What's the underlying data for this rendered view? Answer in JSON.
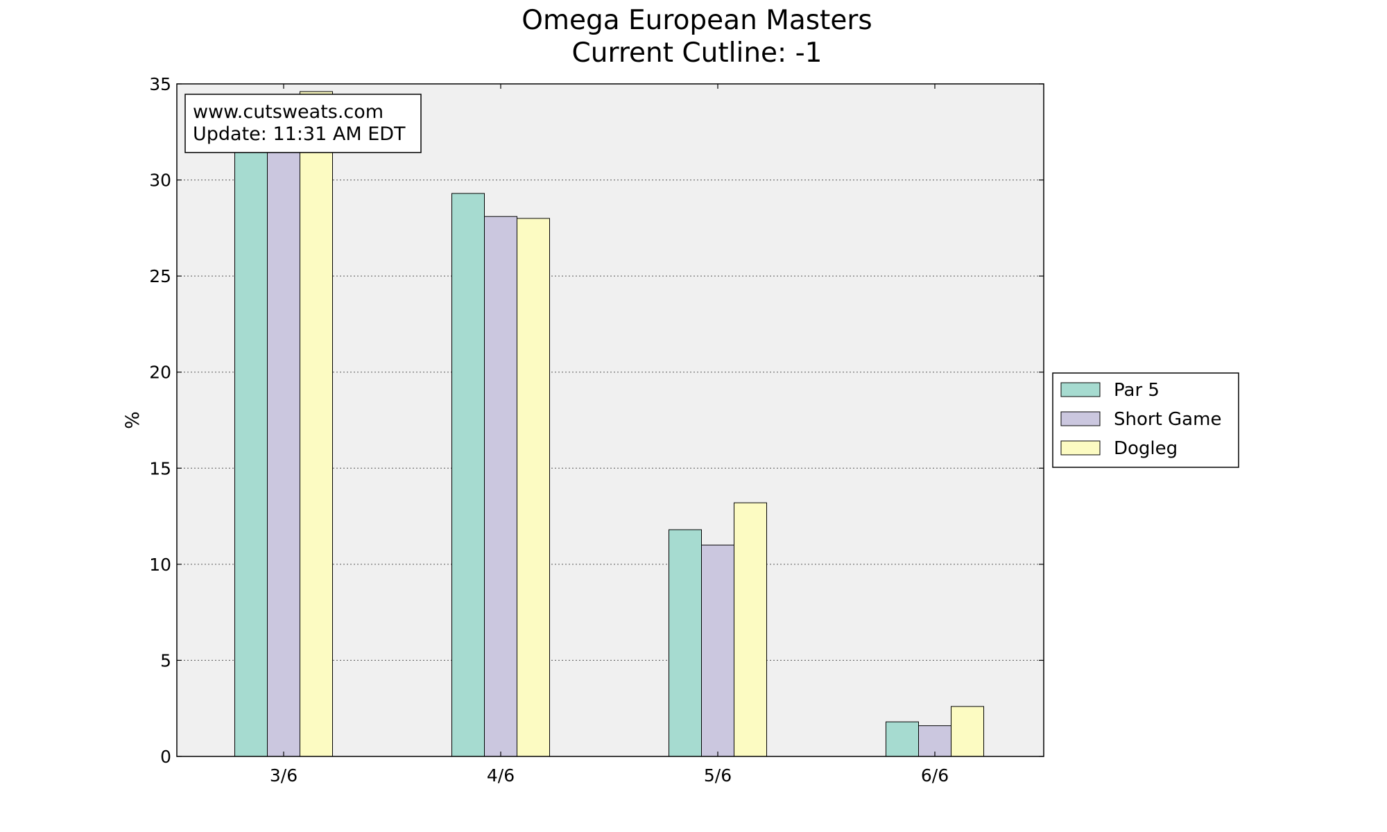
{
  "chart_data": {
    "type": "bar",
    "title": "Omega European Masters",
    "subtitle": "Current Cutline: -1",
    "xlabel": "",
    "ylabel": "%",
    "categories": [
      "3/6",
      "4/6",
      "5/6",
      "6/6"
    ],
    "series": [
      {
        "name": "Par 5",
        "color": "#a6dbd0",
        "values": [
          31.5,
          29.3,
          11.8,
          1.8
        ]
      },
      {
        "name": "Short Game",
        "color": "#cbc7df",
        "values": [
          31.5,
          28.1,
          11.0,
          1.6
        ]
      },
      {
        "name": "Dogleg",
        "color": "#fcfbc2",
        "values": [
          34.6,
          28.0,
          13.2,
          2.6
        ]
      }
    ],
    "ylim": [
      0,
      35
    ],
    "yticks": [
      "0",
      "5",
      "10",
      "15",
      "20",
      "25",
      "30",
      "35"
    ],
    "grid": "y-dotted",
    "legend_position": "right-outside",
    "annotation": {
      "line1": "www.cutsweats.com",
      "line2": "Update: 11:31 AM EDT"
    },
    "colors": {
      "plot_background": "#f0f0f0",
      "edge": "#000000"
    }
  }
}
